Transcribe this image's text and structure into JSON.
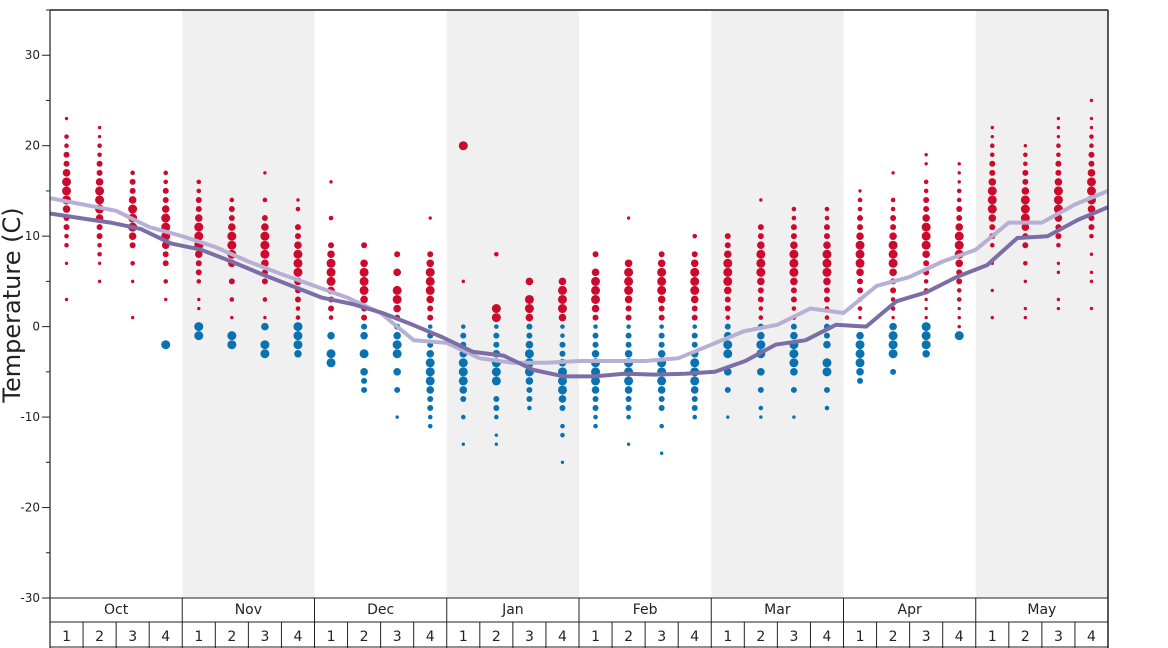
{
  "chart_data": {
    "type": "scatter",
    "ylabel": "Temperature (C)",
    "ylim": [
      -30,
      35
    ],
    "y_ticks": [
      -30,
      -20,
      -10,
      0,
      10,
      20,
      30
    ],
    "months": [
      "Oct",
      "Nov",
      "Dec",
      "Jan",
      "Feb",
      "Mar",
      "Apr",
      "May"
    ],
    "weeks": [
      "1",
      "2",
      "3",
      "4"
    ],
    "grid": false,
    "legend": "none",
    "shaded_months": [
      "Nov",
      "Jan",
      "Mar",
      "May"
    ],
    "colors": {
      "warm": "#cc0a2e",
      "cold": "#0a72b0",
      "line_dark": "#7b6da6",
      "line_light": "#b8b0d4",
      "shade": "#f0f0f0"
    },
    "series": [
      {
        "values": [
          12.5,
          12.0,
          11.5,
          10.8,
          9.2,
          8.5,
          7.2,
          5.8,
          4.5,
          3.2,
          2.5,
          1.5,
          0.2,
          -1.2,
          -2.8,
          -3.2,
          -4.8,
          -5.5,
          -5.5,
          -5.2,
          -5.3,
          -5.2,
          -5.0,
          -3.8,
          -2.0,
          -1.5,
          0.2,
          0.0,
          2.8,
          3.8,
          5.5,
          6.8,
          9.8,
          10.0,
          11.8,
          13.2
        ]
      },
      {
        "values": [
          14.2,
          13.5,
          12.8,
          11.0,
          10.0,
          8.8,
          7.2,
          5.8,
          4.5,
          3.2,
          1.5,
          -1.5,
          -1.8,
          -3.5,
          -4.0,
          -4.0,
          -3.8,
          -3.8,
          -3.8,
          -3.5,
          -2.0,
          -0.5,
          0.2,
          2.0,
          1.5,
          4.5,
          5.5,
          7.2,
          8.5,
          11.5,
          11.5,
          13.5,
          15.0
        ]
      }
    ],
    "dots": [
      {
        "week": 0,
        "warm": [
          3,
          7,
          9,
          10,
          11,
          12,
          13,
          14,
          15,
          16,
          17,
          18,
          19,
          20,
          21,
          23
        ],
        "cold": []
      },
      {
        "week": 1,
        "warm": [
          5,
          7,
          8,
          9,
          10,
          11,
          12,
          13,
          14,
          15,
          16,
          17,
          18,
          19,
          20,
          21,
          22
        ],
        "cold": []
      },
      {
        "week": 2,
        "warm": [
          1,
          5,
          7,
          9,
          10,
          11,
          12,
          13,
          14,
          15,
          16,
          17
        ],
        "cold": []
      },
      {
        "week": 3,
        "warm": [
          3,
          5,
          7,
          8,
          9,
          10,
          11,
          12,
          13,
          14,
          15,
          16,
          17
        ],
        "cold": [
          -2
        ]
      },
      {
        "week": 4,
        "warm": [
          2,
          3,
          5,
          6,
          7,
          8,
          9,
          10,
          11,
          12,
          13,
          14,
          15,
          16
        ],
        "cold": [
          0,
          -1
        ]
      },
      {
        "week": 5,
        "warm": [
          1,
          3,
          5,
          7,
          8,
          9,
          10,
          11,
          12,
          13,
          14
        ],
        "cold": [
          -1,
          -2
        ]
      },
      {
        "week": 6,
        "warm": [
          1,
          3,
          5,
          6,
          7,
          8,
          9,
          10,
          11,
          12,
          14,
          17
        ],
        "cold": [
          0,
          -2,
          -3
        ]
      },
      {
        "week": 7,
        "warm": [
          1,
          2,
          3,
          4,
          5,
          6,
          7,
          8,
          9,
          10,
          11,
          13,
          14
        ],
        "cold": [
          0,
          -1,
          -2,
          -3
        ]
      },
      {
        "week": 8,
        "warm": [
          1,
          2,
          3,
          4,
          5,
          6,
          7,
          8,
          9,
          12,
          16
        ],
        "cold": [
          -1,
          -3,
          -4
        ]
      },
      {
        "week": 9,
        "warm": [
          1,
          2,
          3,
          4,
          5,
          6,
          7,
          9
        ],
        "cold": [
          0,
          -1,
          -3,
          -5,
          -6,
          -7
        ]
      },
      {
        "week": 10,
        "warm": [
          1,
          2,
          3,
          4,
          6,
          8
        ],
        "cold": [
          0,
          -1,
          -2,
          -3,
          -5,
          -7,
          -10
        ]
      },
      {
        "week": 11,
        "warm": [
          1,
          2,
          3,
          4,
          5,
          6,
          7,
          8,
          12
        ],
        "cold": [
          0,
          -1,
          -2,
          -3,
          -4,
          -5,
          -6,
          -7,
          -8,
          -9,
          -10,
          -11
        ]
      },
      {
        "week": 12,
        "warm": [
          5,
          20
        ],
        "cold": [
          0,
          -1,
          -2,
          -3,
          -4,
          -5,
          -6,
          -7,
          -8,
          -10,
          -13
        ]
      },
      {
        "week": 13,
        "warm": [
          1,
          2,
          8
        ],
        "cold": [
          0,
          -1,
          -2,
          -3,
          -4,
          -5,
          -6,
          -8,
          -9,
          -10,
          -12,
          -13
        ]
      },
      {
        "week": 14,
        "warm": [
          1,
          2,
          3,
          5
        ],
        "cold": [
          0,
          -1,
          -2,
          -3,
          -4,
          -5,
          -6,
          -7,
          -8,
          -9
        ]
      },
      {
        "week": 15,
        "warm": [
          1,
          2,
          3,
          4,
          5
        ],
        "cold": [
          0,
          -1,
          -2,
          -3,
          -4,
          -5,
          -6,
          -7,
          -8,
          -9,
          -11,
          -12,
          -15
        ]
      },
      {
        "week": 16,
        "warm": [
          1,
          2,
          3,
          4,
          5,
          6,
          8
        ],
        "cold": [
          0,
          -1,
          -2,
          -3,
          -4,
          -5,
          -6,
          -7,
          -8,
          -9,
          -10,
          -11
        ]
      },
      {
        "week": 17,
        "warm": [
          1,
          2,
          3,
          4,
          5,
          6,
          7,
          12
        ],
        "cold": [
          0,
          -1,
          -2,
          -3,
          -4,
          -5,
          -6,
          -7,
          -8,
          -9,
          -10,
          -13
        ]
      },
      {
        "week": 18,
        "warm": [
          1,
          2,
          3,
          4,
          5,
          6,
          7,
          8
        ],
        "cold": [
          0,
          -1,
          -2,
          -3,
          -4,
          -5,
          -6,
          -7,
          -8,
          -9,
          -11,
          -14
        ]
      },
      {
        "week": 19,
        "warm": [
          1,
          2,
          3,
          4,
          5,
          6,
          7,
          8,
          10
        ],
        "cold": [
          0,
          -1,
          -2,
          -3,
          -4,
          -5,
          -6,
          -7,
          -8,
          -9,
          -10
        ]
      },
      {
        "week": 20,
        "warm": [
          1,
          2,
          3,
          4,
          5,
          6,
          7,
          8,
          9,
          10
        ],
        "cold": [
          0,
          -1,
          -2,
          -3,
          -5,
          -7,
          -10
        ]
      },
      {
        "week": 21,
        "warm": [
          1,
          2,
          3,
          4,
          5,
          6,
          7,
          8,
          9,
          10,
          11,
          14
        ],
        "cold": [
          0,
          -1,
          -2,
          -3,
          -5,
          -7,
          -9,
          -10
        ]
      },
      {
        "week": 22,
        "warm": [
          1,
          2,
          3,
          4,
          5,
          6,
          7,
          8,
          9,
          10,
          11,
          12,
          13
        ],
        "cold": [
          0,
          -1,
          -2,
          -3,
          -4,
          -5,
          -7,
          -10
        ]
      },
      {
        "week": 23,
        "warm": [
          1,
          2,
          3,
          4,
          5,
          6,
          7,
          8,
          9,
          10,
          11,
          12,
          13
        ],
        "cold": [
          0,
          -1,
          -2,
          -4,
          -5,
          -7,
          -9
        ]
      },
      {
        "week": 24,
        "warm": [
          1,
          2,
          3,
          4,
          5,
          6,
          7,
          8,
          9,
          10,
          11,
          12,
          13,
          14,
          15
        ],
        "cold": [
          -1,
          -2,
          -3,
          -4,
          -5,
          -6
        ]
      },
      {
        "week": 25,
        "warm": [
          1,
          2,
          3,
          4,
          5,
          6,
          7,
          8,
          9,
          10,
          11,
          12,
          13,
          14,
          17
        ],
        "cold": [
          0,
          -1,
          -2,
          -3,
          -5
        ]
      },
      {
        "week": 26,
        "warm": [
          1,
          2,
          3,
          4,
          5,
          6,
          7,
          8,
          9,
          10,
          11,
          12,
          13,
          14,
          15,
          16,
          18,
          19
        ],
        "cold": [
          0,
          -1,
          -2,
          -3
        ]
      },
      {
        "week": 27,
        "warm": [
          0,
          1,
          2,
          3,
          4,
          5,
          6,
          7,
          8,
          9,
          10,
          11,
          12,
          13,
          14,
          15,
          16,
          17,
          18
        ],
        "cold": [
          -1
        ]
      },
      {
        "week": 28,
        "warm": [
          1,
          4,
          7,
          9,
          10,
          11,
          12,
          13,
          14,
          15,
          16,
          17,
          18,
          19,
          20,
          21,
          22
        ],
        "cold": []
      },
      {
        "week": 29,
        "warm": [
          1,
          2,
          5,
          7,
          9,
          10,
          11,
          12,
          13,
          14,
          15,
          16,
          17,
          18,
          19,
          20
        ],
        "cold": []
      },
      {
        "week": 30,
        "warm": [
          2,
          3,
          6,
          7,
          9,
          10,
          11,
          12,
          13,
          14,
          15,
          16,
          17,
          18,
          19,
          20,
          21,
          22,
          23
        ],
        "cold": []
      },
      {
        "week": 31,
        "warm": [
          2,
          5,
          6,
          8,
          10,
          11,
          12,
          13,
          14,
          15,
          16,
          17,
          18,
          19,
          20,
          21,
          22,
          23,
          25
        ],
        "cold": []
      }
    ]
  }
}
